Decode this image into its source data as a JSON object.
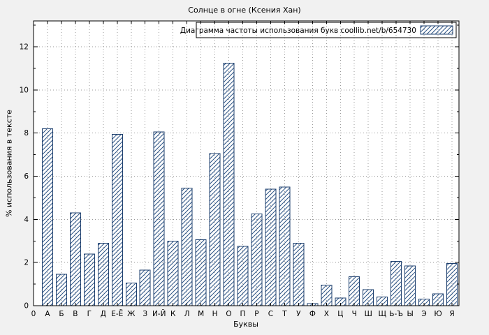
{
  "chart_data": {
    "type": "bar",
    "title": "Солнце в огне (Ксения Хан)",
    "legend": "Диаграмма частоты использования букв coollib.net/b/654730",
    "xlabel": "Буквы",
    "ylabel": "% использования в тексте",
    "origin_label": "0",
    "categories": [
      "А",
      "Б",
      "В",
      "Г",
      "Д",
      "Е-Ё",
      "Ж",
      "З",
      "И-Й",
      "К",
      "Л",
      "М",
      "Н",
      "О",
      "П",
      "Р",
      "С",
      "Т",
      "У",
      "Ф",
      "Х",
      "Ц",
      "Ч",
      "Ш",
      "Щ",
      "Ь-Ъ",
      "Ы",
      "Э",
      "Ю",
      "Я"
    ],
    "values": [
      8.2,
      1.45,
      4.3,
      2.4,
      2.9,
      7.95,
      1.05,
      1.65,
      8.05,
      3.0,
      5.45,
      3.05,
      7.05,
      11.25,
      2.75,
      4.25,
      5.4,
      5.5,
      2.9,
      0.1,
      0.95,
      0.35,
      1.35,
      0.75,
      0.4,
      2.05,
      1.85,
      0.3,
      0.55,
      1.95
    ],
    "yticks": [
      0,
      2,
      4,
      6,
      8,
      10,
      12
    ],
    "ylim": [
      0,
      13.2
    ],
    "grid": true,
    "legend_position": "top-right",
    "bar_style": "hatched"
  },
  "colors": {
    "background": "#f1f1f1",
    "plot_background": "#ffffff",
    "bar_line": "#2c5384",
    "bar_outline": "#1d3f6e",
    "grid": "#999999",
    "axis": "#000000",
    "text": "#000000"
  }
}
